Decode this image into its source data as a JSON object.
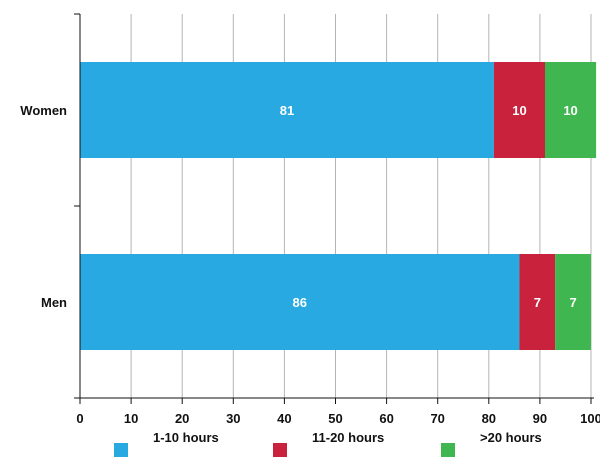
{
  "chart_data": {
    "type": "bar",
    "orientation": "horizontal",
    "stacked": true,
    "categories": [
      "Women",
      "Men"
    ],
    "series": [
      {
        "name": "1-10 hours",
        "values": [
          81,
          86
        ],
        "color": "#29a9e1"
      },
      {
        "name": "11-20 hours",
        "values": [
          10,
          7
        ],
        "color": "#c8223c"
      },
      {
        "name": ">20 hours",
        "values": [
          10,
          7
        ],
        "color": "#3fb64f"
      }
    ],
    "xlim": [
      0,
      100
    ],
    "xticks": [
      "0",
      "10",
      "20",
      "30",
      "40",
      "50",
      "60",
      "70",
      "80",
      "90",
      "100"
    ],
    "grid": "vertical",
    "legend_position": "bottom",
    "data_labels": true,
    "title": "",
    "xlabel": "",
    "ylabel": ""
  }
}
